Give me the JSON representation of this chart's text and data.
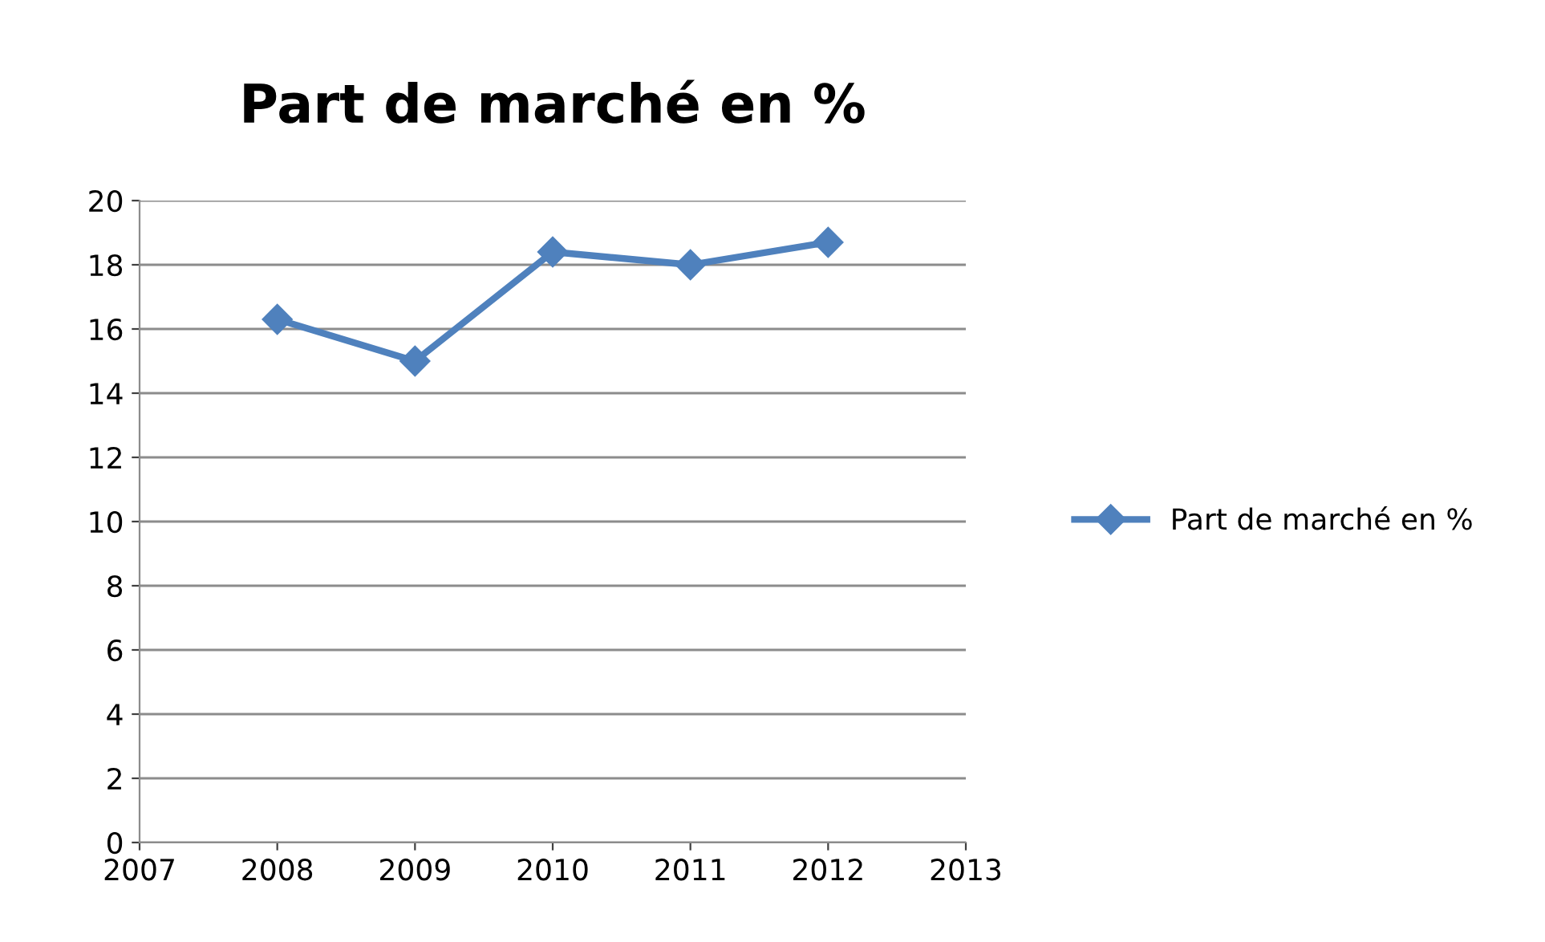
{
  "chart_data": {
    "type": "line",
    "title": "Part de marché en %",
    "x": [
      2008,
      2009,
      2010,
      2011,
      2012
    ],
    "series": [
      {
        "name": "Part de marché en %",
        "color": "#4f81bd",
        "values": [
          16.3,
          15.0,
          18.4,
          18.0,
          18.7
        ]
      }
    ],
    "xlim": [
      2007,
      2013
    ],
    "xticks": [
      2007,
      2008,
      2009,
      2010,
      2011,
      2012,
      2013
    ],
    "ylim": [
      0,
      20
    ],
    "yticks": [
      0,
      2,
      4,
      6,
      8,
      10,
      12,
      14,
      16,
      18,
      20
    ],
    "grid": "y",
    "legend": "right",
    "marker": "diamond",
    "line_style": "solid"
  }
}
